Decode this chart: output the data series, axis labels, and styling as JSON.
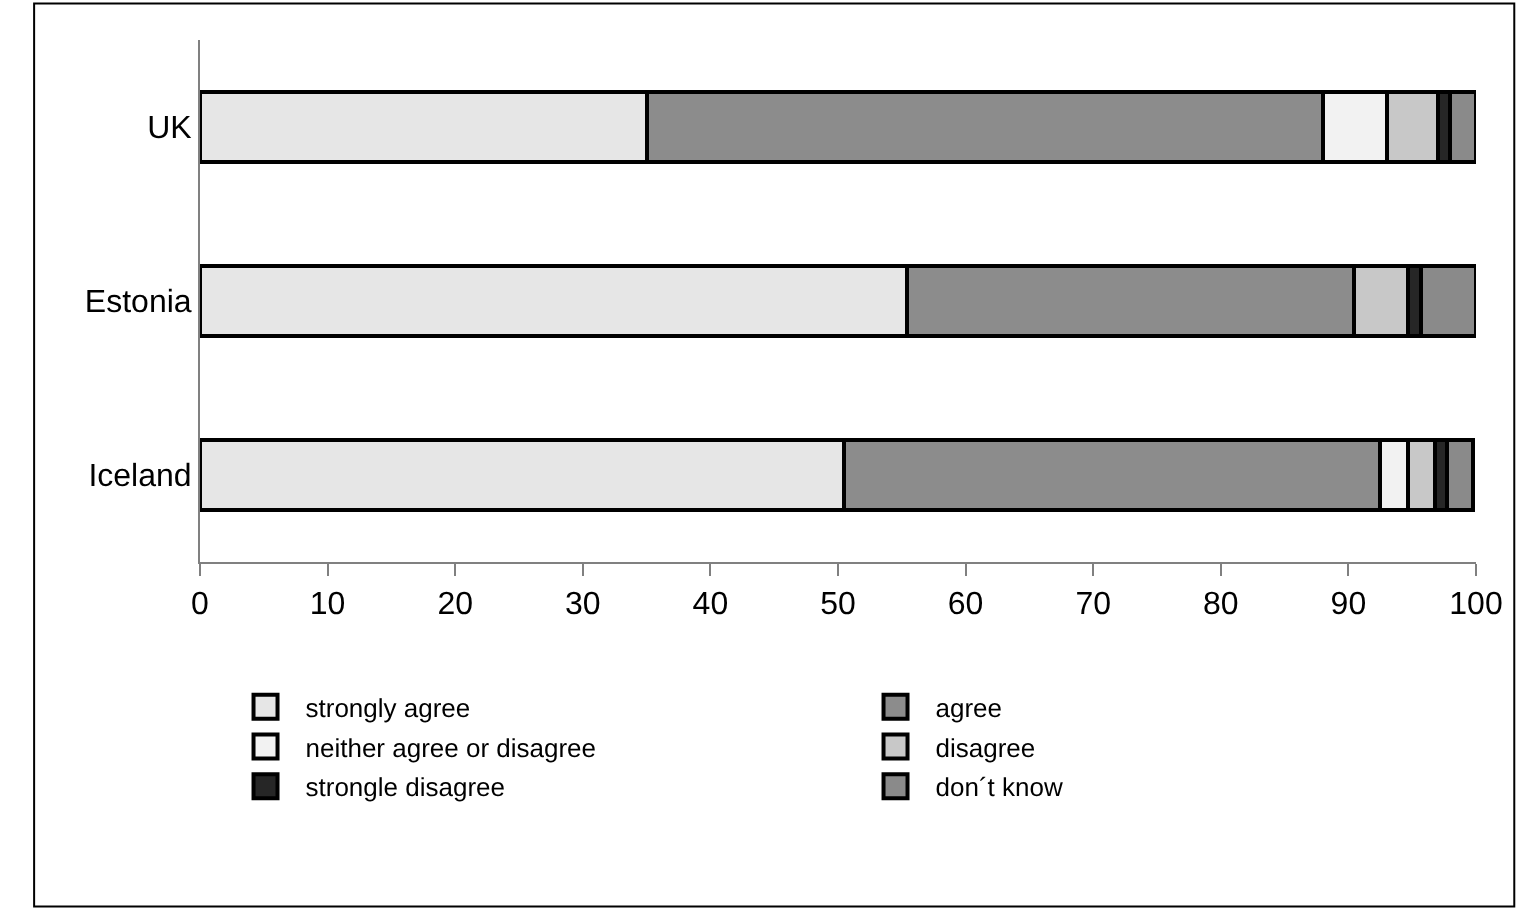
{
  "chart_data": {
    "type": "bar",
    "orientation": "horizontal",
    "stacked": true,
    "categories": [
      "UK",
      "Estonia",
      "Iceland"
    ],
    "series": [
      {
        "name": "strongly agree",
        "color": "#e6e6e6",
        "values": [
          35,
          55.4,
          50.5
        ]
      },
      {
        "name": "agree",
        "color": "#8c8c8c",
        "values": [
          53,
          35,
          42
        ]
      },
      {
        "name": "neither agree or disagree",
        "color": "#f2f2f2",
        "values": [
          5,
          0,
          2.2
        ]
      },
      {
        "name": "disagree",
        "color": "#c8c8c8",
        "values": [
          4,
          4.3,
          2.1
        ]
      },
      {
        "name": "strongle disagree",
        "color": "#262626",
        "values": [
          1,
          1,
          0.9
        ]
      },
      {
        "name": "don´t know",
        "color": "#8a8a8a",
        "values": [
          2,
          4.3,
          2.1
        ]
      }
    ],
    "xlim": [
      0,
      100
    ],
    "xticks": [
      0,
      10,
      20,
      30,
      40,
      50,
      60,
      70,
      80,
      90,
      100
    ],
    "legend": "bottom"
  }
}
